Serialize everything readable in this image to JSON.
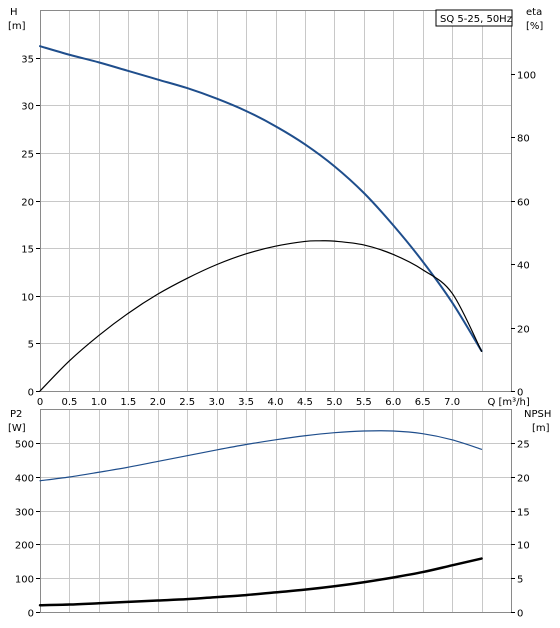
{
  "legend_label": "SQ 5-25, 50Hz",
  "colors": {
    "head_curve": "#1f4e8c",
    "eta_curve": "#000000",
    "p2_curve": "#1f4e8c",
    "npsh_curve": "#000000",
    "grid": "#c8c8c8",
    "frame": "#8a8a8a"
  },
  "chart_data": [
    {
      "type": "line",
      "title": "",
      "legend": "SQ 5-25, 50Hz",
      "xlabel": "Q [m³/h]",
      "ylabel_left": [
        "H",
        "[m]"
      ],
      "ylabel_right": [
        "eta",
        "[%]"
      ],
      "xlim": [
        0,
        8
      ],
      "ylim_left": [
        0,
        40
      ],
      "ylim_right": [
        0,
        120
      ],
      "xticks": [
        "0",
        "0.5",
        "1.0",
        "1.5",
        "2.0",
        "2.5",
        "3.0",
        "3.5",
        "4.0",
        "4.5",
        "5.0",
        "5.5",
        "6.0",
        "6.5",
        "7.0"
      ],
      "xtick_values": [
        0,
        0.5,
        1.0,
        1.5,
        2.0,
        2.5,
        3.0,
        3.5,
        4.0,
        4.5,
        5.0,
        5.5,
        6.0,
        6.5,
        7.0
      ],
      "yticks_left": [
        0,
        5,
        10,
        15,
        20,
        25,
        30,
        35
      ],
      "yticks_right": [
        0,
        20,
        40,
        60,
        80,
        100
      ],
      "grid": true,
      "series": [
        {
          "axis": "left",
          "x": [
            0,
            0.5,
            1.0,
            1.5,
            2.0,
            2.5,
            3.0,
            3.5,
            4.0,
            4.5,
            5.0,
            5.5,
            6.0,
            6.5,
            7.0,
            7.5
          ],
          "values": [
            36.2,
            35.3,
            34.5,
            33.6,
            32.7,
            31.8,
            30.7,
            29.4,
            27.8,
            25.9,
            23.6,
            20.8,
            17.4,
            13.6,
            9.3,
            4.2
          ]
        },
        {
          "axis": "right",
          "x": [
            0,
            0.5,
            1.0,
            1.5,
            2.0,
            2.5,
            3.0,
            3.5,
            4.0,
            4.5,
            4.75,
            5.0,
            5.5,
            6.0,
            6.5,
            7.0,
            7.5
          ],
          "values": [
            0,
            9.5,
            17.5,
            24.5,
            30.5,
            35.5,
            39.8,
            43.2,
            45.6,
            47.1,
            47.3,
            47.2,
            46.0,
            43.0,
            38.2,
            30.8,
            12.5
          ]
        }
      ]
    },
    {
      "type": "line",
      "title": "",
      "xlabel": "",
      "ylabel_left": [
        "P2",
        "[W]"
      ],
      "ylabel_right": [
        "NPSH",
        "[m]"
      ],
      "xlim": [
        0,
        8
      ],
      "ylim_left": [
        0,
        600
      ],
      "ylim_right": [
        0,
        30
      ],
      "yticks_left": [
        0,
        100,
        200,
        300,
        400,
        500
      ],
      "yticks_right": [
        0,
        5,
        10,
        15,
        20,
        25
      ],
      "grid": true,
      "series": [
        {
          "axis": "left",
          "x": [
            0,
            0.5,
            1.0,
            1.5,
            2.0,
            2.5,
            3.0,
            3.5,
            4.0,
            4.5,
            5.0,
            5.5,
            6.0,
            6.5,
            7.0,
            7.5
          ],
          "values": [
            388,
            399,
            413,
            428,
            445,
            462,
            479,
            495,
            509,
            521,
            530,
            535,
            535,
            527,
            509,
            481
          ]
        },
        {
          "axis": "right",
          "x": [
            0,
            0.5,
            1.0,
            1.5,
            2.0,
            2.5,
            3.0,
            3.5,
            4.0,
            4.5,
            5.0,
            5.5,
            6.0,
            6.5,
            7.0,
            7.5
          ],
          "values": [
            1.0,
            1.1,
            1.3,
            1.5,
            1.7,
            1.9,
            2.2,
            2.5,
            2.9,
            3.3,
            3.8,
            4.4,
            5.1,
            5.9,
            6.9,
            7.9
          ]
        }
      ]
    }
  ]
}
